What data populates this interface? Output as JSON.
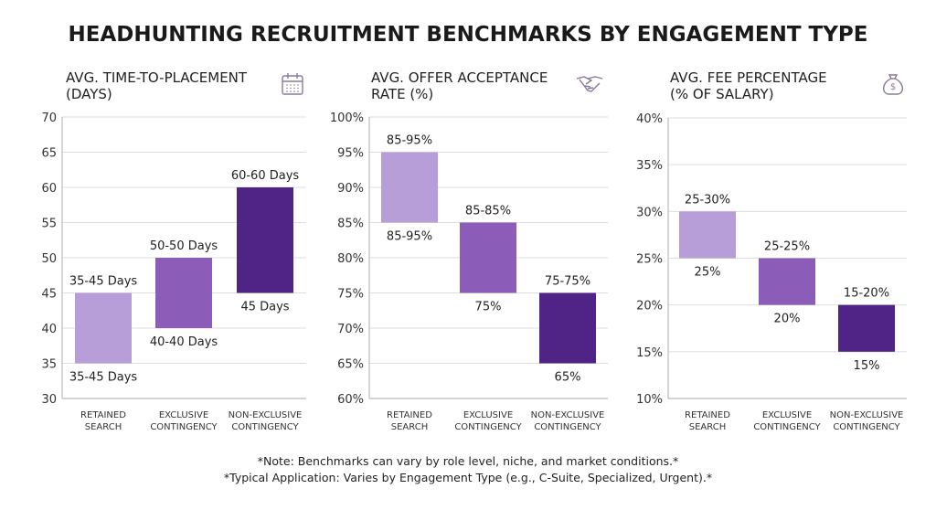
{
  "title": "HEADHUNTING RECRUITMENT BENCHMARKS BY ENGAGEMENT TYPE",
  "notes": [
    "*Note: Benchmarks can vary by role level, niche, and market conditions.*",
    "*Typical Application: Varies by Engagement Type (e.g., C-Suite, Specialized, Urgent).*"
  ],
  "colors": {
    "retained": "#b89ed9",
    "exclusive": "#8c5db8",
    "non_exclusive": "#4f2486",
    "grid": "#dddddd",
    "icon": "#8a7a9a"
  },
  "chart_data": [
    {
      "type": "bar",
      "subtype": "floating-range",
      "title_lines": [
        "AVG. TIME-TO-PLACEMENT",
        "(DAYS)"
      ],
      "icon": "calendar-icon",
      "categories": [
        [
          "RETAINED",
          "SEARCH"
        ],
        [
          "EXCLUSIVE",
          "CONTINGENCY"
        ],
        [
          "NON-EXCLUSIVE",
          "CONTINGENCY"
        ]
      ],
      "ylim": [
        30,
        70
      ],
      "yticks": [
        "30",
        "35",
        "40",
        "45",
        "50",
        "55",
        "60",
        "65",
        "70"
      ],
      "ytick_values": [
        30,
        35,
        40,
        45,
        50,
        55,
        60,
        65,
        70
      ],
      "grid": true,
      "ranges": [
        [
          35,
          45
        ],
        [
          40,
          50
        ],
        [
          45,
          60
        ]
      ],
      "labels_top": [
        "35-45 Days",
        "50-50 Days",
        "60-60 Days"
      ],
      "labels_bottom": [
        "35-45 Days",
        "40-40 Days",
        "45 Days"
      ]
    },
    {
      "type": "bar",
      "subtype": "floating-range",
      "title_lines": [
        "AVG. OFFER ACCEPTANCE",
        "RATE (%)"
      ],
      "icon": "handshake-icon",
      "categories": [
        [
          "RETAINED",
          "SEARCH"
        ],
        [
          "EXCLUSIVE",
          "CONTINGENCY"
        ],
        [
          "NON-EXCLUSIVE",
          "CONTINGENCY"
        ]
      ],
      "ylim": [
        60,
        100
      ],
      "yticks": [
        "60%",
        "65%",
        "70%",
        "75%",
        "80%",
        "85%",
        "90%",
        "95%",
        "100%"
      ],
      "ytick_values": [
        60,
        65,
        70,
        75,
        80,
        85,
        90,
        95,
        100
      ],
      "grid": true,
      "ranges": [
        [
          85,
          95
        ],
        [
          75,
          85
        ],
        [
          65,
          75
        ]
      ],
      "labels_top": [
        "85-95%",
        "85-85%",
        "75-75%"
      ],
      "labels_bottom": [
        "85-95%",
        "75%",
        "65%"
      ]
    },
    {
      "type": "bar",
      "subtype": "floating-range",
      "title_lines": [
        "AVG. FEE PERCENTAGE",
        "(% OF SALARY)"
      ],
      "icon": "money-bag-icon",
      "categories": [
        [
          "RETAINED",
          "SEARCH"
        ],
        [
          "EXCLUSIVE",
          "CONTINGENCY"
        ],
        [
          "NON-EXCLUSIVE",
          "CONTINGENCY"
        ]
      ],
      "ylim": [
        10,
        40
      ],
      "yticks": [
        "10%",
        "15%",
        "20%",
        "25%",
        "30%",
        "35%",
        "40%"
      ],
      "ytick_values": [
        10,
        15,
        20,
        25,
        30,
        35,
        40
      ],
      "grid": true,
      "ranges": [
        [
          25,
          30
        ],
        [
          20,
          25
        ],
        [
          15,
          20
        ]
      ],
      "labels_top": [
        "25-30%",
        "25-25%",
        "15-20%"
      ],
      "labels_bottom": [
        "25%",
        "20%",
        "15%"
      ]
    }
  ]
}
